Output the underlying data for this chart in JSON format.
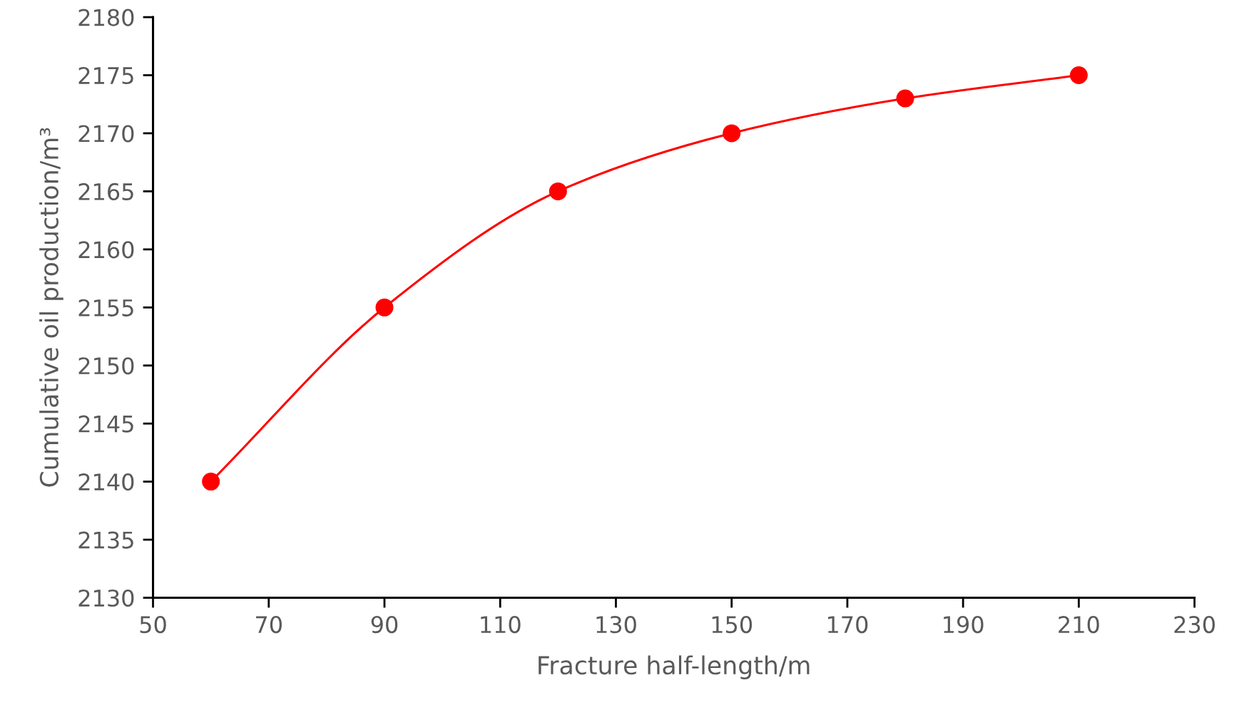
{
  "chart_data": {
    "type": "line",
    "xlabel": "Fracture half-length/m",
    "ylabel": "Cumulative oil production/m³",
    "x": [
      60,
      90,
      120,
      150,
      180,
      210
    ],
    "series": [
      {
        "color": "#ff0000",
        "values": [
          2140,
          2155,
          2165,
          2170,
          2173,
          2175
        ]
      }
    ],
    "xlim": [
      50,
      230
    ],
    "xticks": [
      50,
      70,
      90,
      110,
      130,
      150,
      170,
      190,
      210,
      230
    ],
    "ylim": [
      2130,
      2180
    ],
    "yticks": [
      2130,
      2135,
      2140,
      2145,
      2150,
      2155,
      2160,
      2165,
      2170,
      2175,
      2180
    ],
    "grid": false,
    "legend": false,
    "marker": "circle",
    "line_style": "solid"
  }
}
